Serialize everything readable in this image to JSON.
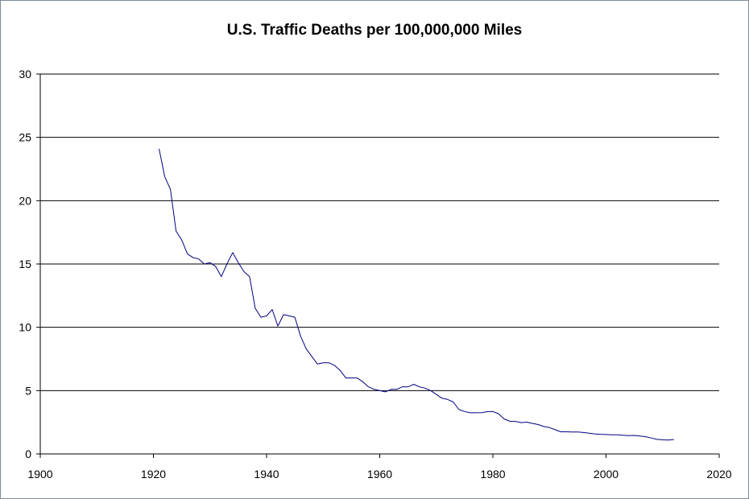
{
  "chart_data": {
    "type": "line",
    "title": "U.S. Traffic Deaths per 100,000,000 Miles",
    "xlabel": "",
    "ylabel": "",
    "xlim": [
      1900,
      2020
    ],
    "ylim": [
      0,
      30
    ],
    "x_ticks": [
      "1900",
      "1920",
      "1940",
      "1960",
      "1980",
      "2000",
      "2020"
    ],
    "y_ticks": [
      "0",
      "5",
      "10",
      "15",
      "20",
      "25",
      "30"
    ],
    "grid": "horizontal",
    "legend": "none",
    "series": [
      {
        "color": "#000080",
        "x": [
          1921,
          1922,
          1923,
          1924,
          1925,
          1926,
          1927,
          1928,
          1929,
          1930,
          1931,
          1932,
          1933,
          1934,
          1935,
          1936,
          1937,
          1938,
          1939,
          1940,
          1941,
          1942,
          1943,
          1944,
          1945,
          1946,
          1947,
          1948,
          1949,
          1950,
          1951,
          1952,
          1953,
          1954,
          1955,
          1956,
          1957,
          1958,
          1959,
          1960,
          1961,
          1962,
          1963,
          1964,
          1965,
          1966,
          1967,
          1968,
          1969,
          1970,
          1971,
          1972,
          1973,
          1974,
          1975,
          1976,
          1977,
          1978,
          1979,
          1980,
          1981,
          1982,
          1983,
          1984,
          1985,
          1986,
          1987,
          1988,
          1989,
          1990,
          1991,
          1992,
          1993,
          1994,
          1995,
          1996,
          1997,
          1998,
          1999,
          2000,
          2001,
          2002,
          2003,
          2004,
          2005,
          2006,
          2007,
          2008,
          2009,
          2010,
          2011,
          2012
        ],
        "y": [
          24.1,
          21.9,
          20.9,
          17.6,
          16.9,
          15.8,
          15.5,
          15.4,
          15.0,
          15.1,
          14.8,
          14.0,
          15.0,
          15.9,
          15.1,
          14.4,
          14.0,
          11.5,
          10.8,
          10.9,
          11.4,
          10.1,
          11.0,
          10.9,
          10.8,
          9.3,
          8.3,
          7.7,
          7.1,
          7.2,
          7.2,
          7.0,
          6.6,
          6.0,
          6.0,
          6.0,
          5.7,
          5.3,
          5.1,
          5.0,
          4.9,
          5.1,
          5.1,
          5.3,
          5.3,
          5.5,
          5.3,
          5.2,
          5.0,
          4.7,
          4.4,
          4.3,
          4.1,
          3.5,
          3.35,
          3.25,
          3.25,
          3.26,
          3.34,
          3.35,
          3.17,
          2.76,
          2.58,
          2.57,
          2.47,
          2.51,
          2.41,
          2.32,
          2.17,
          2.08,
          1.91,
          1.75,
          1.75,
          1.73,
          1.73,
          1.69,
          1.64,
          1.58,
          1.55,
          1.53,
          1.51,
          1.51,
          1.48,
          1.44,
          1.46,
          1.42,
          1.36,
          1.26,
          1.15,
          1.11,
          1.1,
          1.14
        ]
      }
    ]
  }
}
